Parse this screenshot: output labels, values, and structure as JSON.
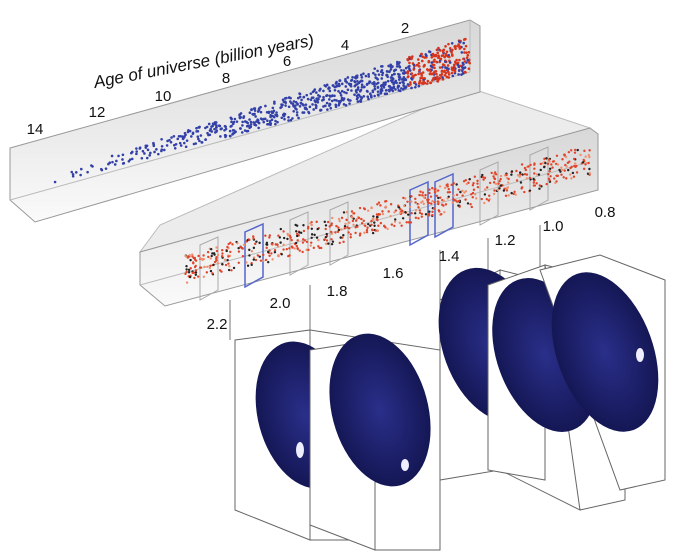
{
  "title": "Age of universe (billion years)",
  "upper_axis": {
    "labels": [
      "14",
      "12",
      "10",
      "8",
      "6",
      "4",
      "2"
    ]
  },
  "lower_axis": {
    "labels": [
      "2.2",
      "2.0",
      "1.8",
      "1.6",
      "1.4",
      "1.2",
      "1.0",
      "0.8"
    ]
  }
}
